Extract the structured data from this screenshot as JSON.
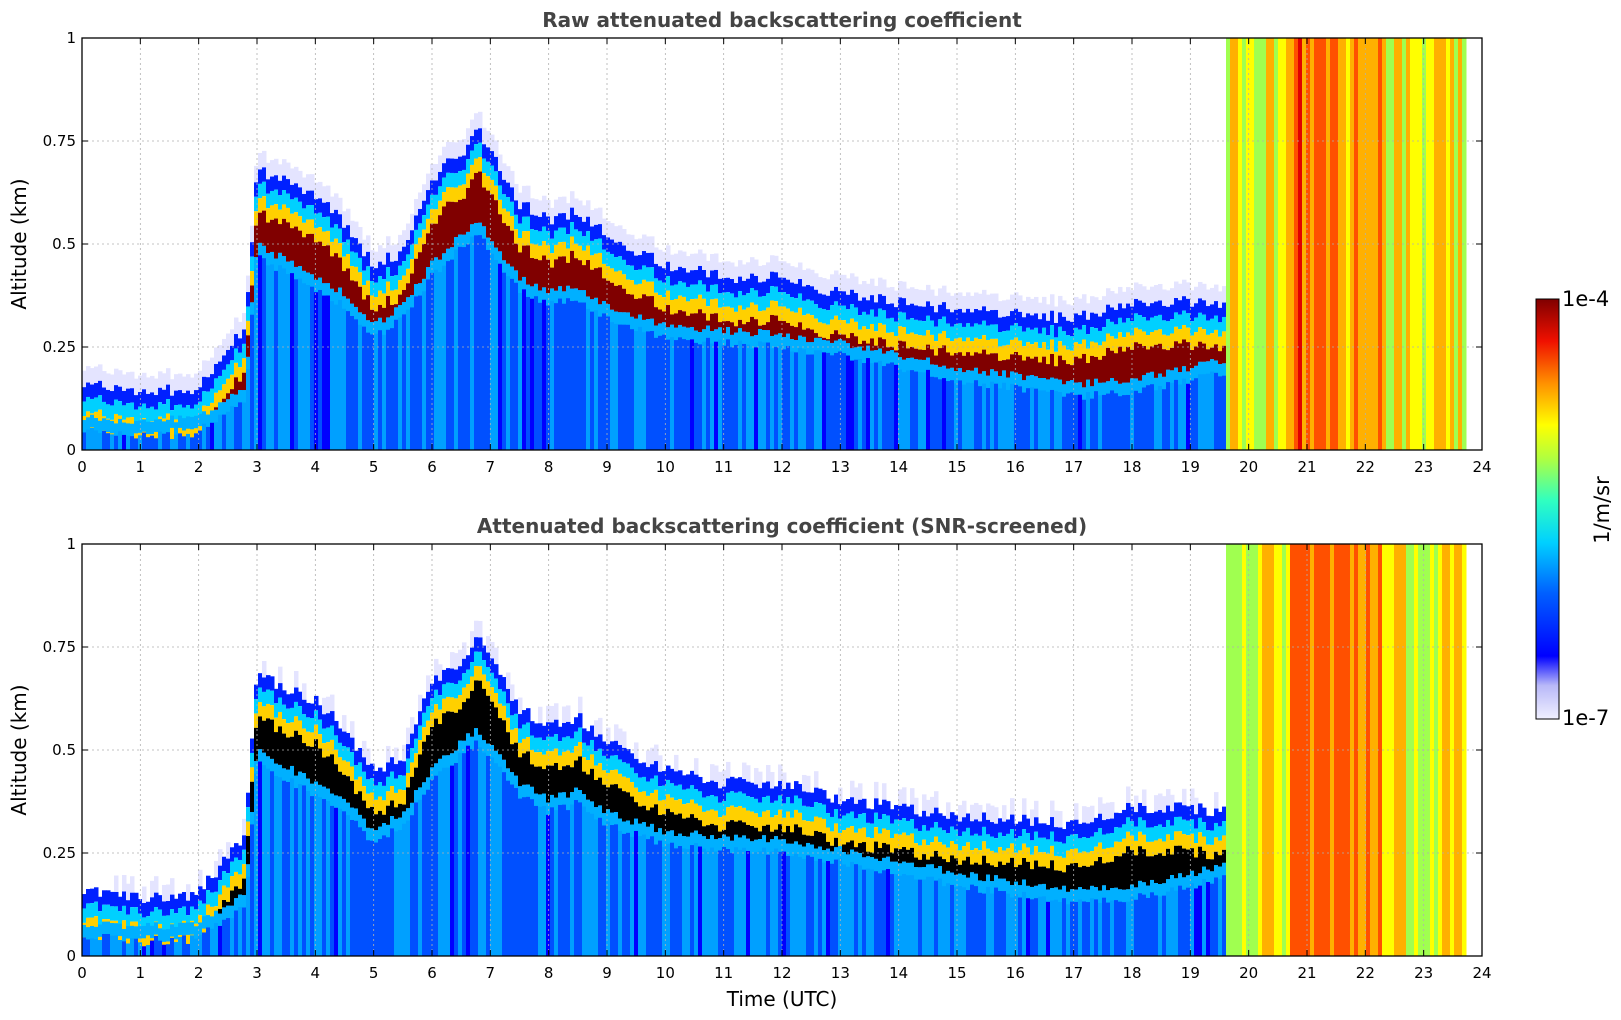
{
  "chart_data": [
    {
      "type": "heatmap",
      "title": "Raw attenuated backscattering coefficient",
      "xlabel": "",
      "ylabel": "Altitude (km)",
      "xlim": [
        0,
        24
      ],
      "ylim": [
        0,
        1
      ],
      "xticks": [
        "0",
        "1",
        "2",
        "3",
        "4",
        "5",
        "6",
        "7",
        "8",
        "9",
        "10",
        "11",
        "12",
        "13",
        "14",
        "15",
        "16",
        "17",
        "18",
        "19",
        "20",
        "21",
        "22",
        "23",
        "24"
      ],
      "yticks": [
        "0",
        "0.25",
        "0.5",
        "0.75",
        "1"
      ],
      "grid": true,
      "screened": false,
      "layer_top_km": [
        [
          0,
          0.16
        ],
        [
          1,
          0.14
        ],
        [
          2,
          0.15
        ],
        [
          2.8,
          0.3
        ],
        [
          3,
          0.68
        ],
        [
          4,
          0.62
        ],
        [
          4.5,
          0.55
        ],
        [
          5,
          0.45
        ],
        [
          5.5,
          0.48
        ],
        [
          6,
          0.66
        ],
        [
          6.5,
          0.72
        ],
        [
          6.8,
          0.78
        ],
        [
          7.5,
          0.6
        ],
        [
          8,
          0.56
        ],
        [
          8.5,
          0.58
        ],
        [
          9,
          0.52
        ],
        [
          10,
          0.45
        ],
        [
          11,
          0.42
        ],
        [
          12,
          0.42
        ],
        [
          13,
          0.38
        ],
        [
          14,
          0.36
        ],
        [
          15,
          0.34
        ],
        [
          16,
          0.33
        ],
        [
          17,
          0.32
        ],
        [
          18,
          0.36
        ],
        [
          19,
          0.36
        ],
        [
          19.6,
          0.35
        ]
      ],
      "layer_bottom_km": [
        [
          0,
          0.08
        ],
        [
          1,
          0.07
        ],
        [
          2,
          0.08
        ],
        [
          2.8,
          0.15
        ],
        [
          3,
          0.5
        ],
        [
          4,
          0.42
        ],
        [
          4.5,
          0.38
        ],
        [
          5,
          0.3
        ],
        [
          5.5,
          0.35
        ],
        [
          6,
          0.45
        ],
        [
          6.5,
          0.52
        ],
        [
          6.8,
          0.55
        ],
        [
          7.5,
          0.42
        ],
        [
          8,
          0.38
        ],
        [
          8.5,
          0.4
        ],
        [
          9,
          0.35
        ],
        [
          10,
          0.3
        ],
        [
          11,
          0.29
        ],
        [
          12,
          0.28
        ],
        [
          13,
          0.26
        ],
        [
          14,
          0.23
        ],
        [
          15,
          0.2
        ],
        [
          16,
          0.18
        ],
        [
          17,
          0.16
        ],
        [
          18,
          0.17
        ],
        [
          19,
          0.2
        ],
        [
          19.6,
          0.22
        ]
      ]
    },
    {
      "type": "heatmap",
      "title": "Attenuated backscattering coefficient (SNR-screened)",
      "xlabel": "Time (UTC)",
      "ylabel": "Altitude (km)",
      "xlim": [
        0,
        24
      ],
      "ylim": [
        0,
        1
      ],
      "xticks": [
        "0",
        "1",
        "2",
        "3",
        "4",
        "5",
        "6",
        "7",
        "8",
        "9",
        "10",
        "11",
        "12",
        "13",
        "14",
        "15",
        "16",
        "17",
        "18",
        "19",
        "20",
        "21",
        "22",
        "23",
        "24"
      ],
      "yticks": [
        "0",
        "0.25",
        "0.5",
        "0.75",
        "1"
      ],
      "grid": true,
      "screened": true,
      "layer_top_km": [
        [
          0,
          0.16
        ],
        [
          1,
          0.14
        ],
        [
          2,
          0.15
        ],
        [
          2.8,
          0.3
        ],
        [
          3,
          0.68
        ],
        [
          4,
          0.62
        ],
        [
          4.5,
          0.55
        ],
        [
          5,
          0.45
        ],
        [
          5.5,
          0.48
        ],
        [
          6,
          0.66
        ],
        [
          6.5,
          0.72
        ],
        [
          6.8,
          0.78
        ],
        [
          7.5,
          0.6
        ],
        [
          8,
          0.56
        ],
        [
          8.5,
          0.58
        ],
        [
          9,
          0.52
        ],
        [
          10,
          0.45
        ],
        [
          11,
          0.42
        ],
        [
          12,
          0.42
        ],
        [
          13,
          0.38
        ],
        [
          14,
          0.36
        ],
        [
          15,
          0.34
        ],
        [
          16,
          0.33
        ],
        [
          17,
          0.32
        ],
        [
          18,
          0.36
        ],
        [
          19,
          0.36
        ],
        [
          19.6,
          0.35
        ]
      ],
      "layer_bottom_km": [
        [
          0,
          0.08
        ],
        [
          1,
          0.07
        ],
        [
          2,
          0.08
        ],
        [
          2.8,
          0.15
        ],
        [
          3,
          0.5
        ],
        [
          4,
          0.42
        ],
        [
          4.5,
          0.38
        ],
        [
          5,
          0.3
        ],
        [
          5.5,
          0.35
        ],
        [
          6,
          0.45
        ],
        [
          6.5,
          0.52
        ],
        [
          6.8,
          0.55
        ],
        [
          7.5,
          0.42
        ],
        [
          8,
          0.38
        ],
        [
          8.5,
          0.4
        ],
        [
          9,
          0.35
        ],
        [
          10,
          0.3
        ],
        [
          11,
          0.29
        ],
        [
          12,
          0.28
        ],
        [
          13,
          0.26
        ],
        [
          14,
          0.23
        ],
        [
          15,
          0.2
        ],
        [
          16,
          0.18
        ],
        [
          17,
          0.16
        ],
        [
          18,
          0.17
        ],
        [
          19,
          0.2
        ],
        [
          19.6,
          0.22
        ]
      ]
    }
  ],
  "colorbar": {
    "max_label": "1e-4",
    "min_label": "1e-7",
    "unit_label": "1/m/sr",
    "colors": [
      "#e8e8ff",
      "#b8b8f8",
      "#0000ff",
      "#0050ff",
      "#00a0ff",
      "#00e8f0",
      "#40ffb0",
      "#a0ff50",
      "#ffff00",
      "#ffb000",
      "#ff5000",
      "#e00000",
      "#800000"
    ]
  }
}
